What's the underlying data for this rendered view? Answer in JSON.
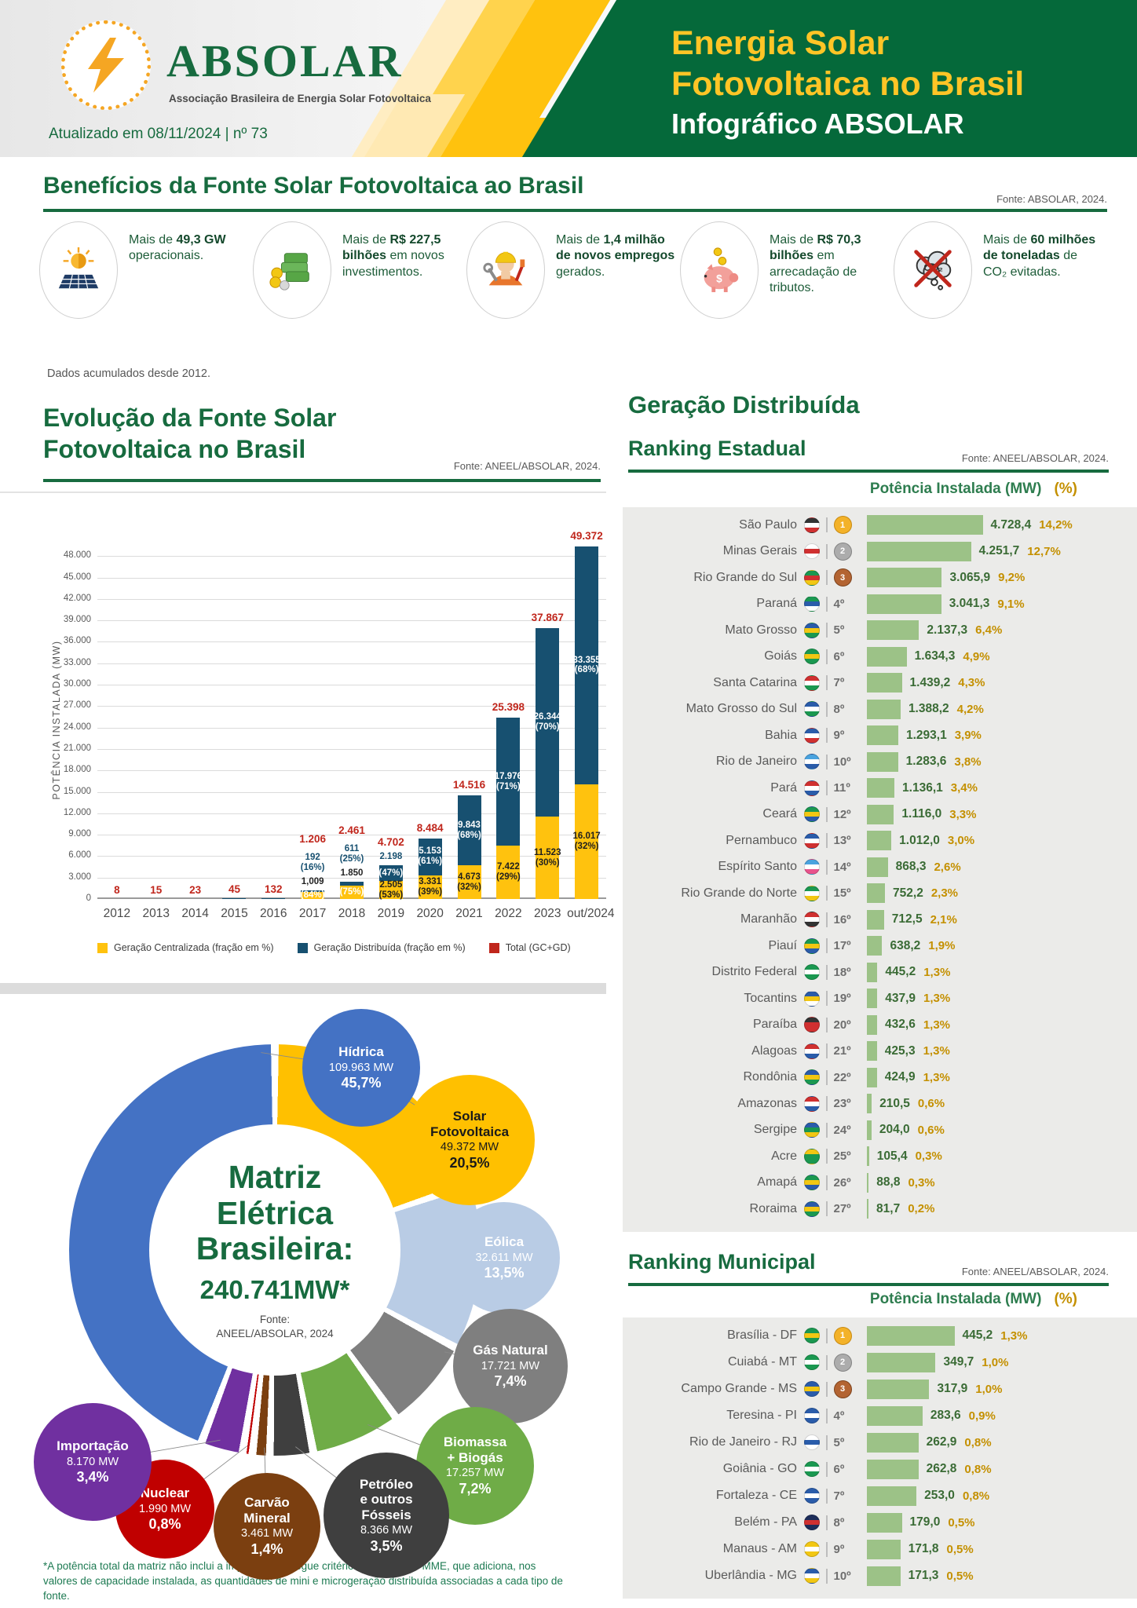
{
  "header": {
    "brand": "ABSOLAR",
    "tagline": "Associação Brasileira de Energia Solar Fotovoltaica",
    "title_line1": "Energia Solar",
    "title_line2": "Fotovoltaica no Brasil",
    "subtitle": "Infográfico ABSOLAR",
    "updated": "Atualizado em 08/11/2024 | nº 73"
  },
  "colors": {
    "dark_green": "#176B3F",
    "header_green": "#05693A",
    "accent_yellow": "#FFC20E",
    "bar_blue": "#175070",
    "bar_yellow": "#FFC20E",
    "total_red": "#C0261C",
    "rank_bar_green": "#9CC287",
    "value_green": "#3A6B35",
    "pct_gold": "#C49000",
    "panel_gray": "#EBEBE9"
  },
  "benefits": {
    "title": "Benefícios da Fonte Solar Fotovoltaica ao Brasil",
    "fonte": "Fonte: ABSOLAR, 2024.",
    "note": "Dados acumulados desde 2012.",
    "items": [
      {
        "icon": "solar-panel-icon",
        "pre": "Mais de",
        "bold": "49,3 GW",
        "post": "operacionais."
      },
      {
        "icon": "money-icon",
        "pre": "Mais de",
        "bold": "R$ 227,5 bilhões",
        "post": "em novos investimentos."
      },
      {
        "icon": "worker-icon",
        "pre": "Mais de",
        "bold": "1,4 milhão de novos empregos",
        "post": "gerados."
      },
      {
        "icon": "piggy-bank-icon",
        "pre": "Mais de",
        "bold": "R$ 70,3 bilhões",
        "post": "em arrecadação de tributos."
      },
      {
        "icon": "co2-icon",
        "pre": "Mais de",
        "bold": "60 milhões de toneladas",
        "post": "de CO₂ evitadas."
      }
    ]
  },
  "evolution": {
    "title_line1": "Evolução da Fonte Solar",
    "title_line2": "Fotovoltaica no Brasil",
    "fonte": "Fonte: ANEEL/ABSOLAR, 2024."
  },
  "gd": {
    "title": "Geração Distribuída",
    "estadual_heading": "Ranking Estadual",
    "estadual_fonte": "Fonte: ANEEL/ABSOLAR, 2024.",
    "municipal_heading": "Ranking Municipal",
    "municipal_fonte": "Fonte: ANEEL/ABSOLAR, 2024.",
    "col_mw": "Potência Instalada (MW)",
    "col_pct": "(%)"
  },
  "matrix": {
    "center_line1": "Matriz",
    "center_line2": "Elétrica",
    "center_line3": "Brasileira:",
    "center_total": "240.741MW*",
    "fonte": "Fonte:\nANEEL/ABSOLAR, 2024",
    "footnote": "*A potência total da matriz não inclui a importação e segue critério aplicado pelo MME, que adiciona, nos valores de capacidade instalada, as quantidades de mini e microgeração distribuída associadas a cada tipo de fonte."
  },
  "chart_data": [
    {
      "id": "evolution",
      "type": "bar",
      "stacked": true,
      "title": "Evolução da Fonte Solar Fotovoltaica no Brasil",
      "ylabel": "POTÊNCIA INSTALADA (MW)",
      "ylim": [
        0,
        48000
      ],
      "grid_step": 3000,
      "grid": true,
      "legend_position": "bottom",
      "categories": [
        "2012",
        "2013",
        "2014",
        "2015",
        "2016",
        "2017",
        "2018",
        "2019",
        "2020",
        "2021",
        "2022",
        "2023",
        "out/2024"
      ],
      "series": [
        {
          "name": "Geração Centralizada (fração em %)",
          "color": "#FFC20E",
          "values": [
            0,
            0,
            0,
            0,
            0,
            1009,
            1850,
            2505,
            3331,
            4673,
            7422,
            11523,
            16017
          ],
          "labels": [
            "",
            "",
            "",
            "",
            "",
            "1,009",
            "1.850",
            "2.505",
            "3.331",
            "4.673",
            "7.422",
            "11.523",
            "16.017"
          ],
          "pcts": [
            "",
            "",
            "",
            "",
            "",
            "(84%)",
            "(75%)",
            "(53%)",
            "(39%)",
            "(32%)",
            "(29%)",
            "(30%)",
            "(32%)"
          ]
        },
        {
          "name": "Geração Distribuída (fração em %)",
          "color": "#175070",
          "values": [
            8,
            15,
            23,
            45,
            132,
            192,
            611,
            2198,
            5153,
            9843,
            17976,
            26344,
            33355
          ],
          "labels": [
            "",
            "",
            "",
            "",
            "",
            "192",
            "611",
            "2.198",
            "5.153",
            "9.843",
            "17.976",
            "26.344",
            "33.355"
          ],
          "pcts": [
            "",
            "",
            "",
            "",
            "",
            "(16%)",
            "(25%)",
            "(47%)",
            "(61%)",
            "(68%)",
            "(71%)",
            "(70%)",
            "(68%)"
          ]
        }
      ],
      "totals": {
        "name": "Total (GC+GD)",
        "color": "#C0261C",
        "labels": [
          "8",
          "15",
          "23",
          "45",
          "132",
          "1.206",
          "2.461",
          "4.702",
          "8.484",
          "14.516",
          "25.398",
          "37.867",
          "49.372"
        ]
      },
      "label_modes": [
        "tiny",
        "tiny",
        "tiny",
        "tiny",
        "tiny",
        "above",
        "above",
        "mixed",
        "inside",
        "inside",
        "inside",
        "inside",
        "inside"
      ]
    },
    {
      "id": "matriz",
      "type": "pie",
      "title": "Matriz Elétrica Brasileira: 240.741MW*",
      "segments": [
        {
          "id": "solar",
          "name": "Solar\nFotovoltaica",
          "mw": "49.372 MW",
          "pct": "20,5%",
          "value": 20.5,
          "color": "#FFC000",
          "text": "#1a1a1a"
        },
        {
          "id": "eolica",
          "name": "Eólica",
          "mw": "32.611 MW",
          "pct": "13,5%",
          "value": 13.5,
          "color": "#B9CCE5",
          "text": "#ffffff"
        },
        {
          "id": "gas",
          "name": "Gás Natural",
          "mw": "17.721 MW",
          "pct": "7,4%",
          "value": 7.4,
          "color": "#7F7F7F",
          "text": "#ffffff"
        },
        {
          "id": "biomassa",
          "name": "Biomassa\n+ Biogás",
          "mw": "17.257 MW",
          "pct": "7,2%",
          "value": 7.2,
          "color": "#6FAC47",
          "text": "#ffffff"
        },
        {
          "id": "petroleo",
          "name": "Petróleo\ne outros\nFósseis",
          "mw": "8.366 MW",
          "pct": "3,5%",
          "value": 3.5,
          "color": "#3F3F3F",
          "text": "#ffffff"
        },
        {
          "id": "carvao",
          "name": "Carvão\nMineral",
          "mw": "3.461 MW",
          "pct": "1,4%",
          "value": 1.4,
          "color": "#7B3F10",
          "text": "#ffffff"
        },
        {
          "id": "nuclear",
          "name": "Nuclear",
          "mw": "1.990 MW",
          "pct": "0,8%",
          "value": 0.8,
          "color": "#C00000",
          "text": "#ffffff"
        },
        {
          "id": "importacao",
          "name": "Importação",
          "mw": "8.170 MW",
          "pct": "3,4%",
          "value": 3.4,
          "color": "#7030A0",
          "text": "#ffffff"
        },
        {
          "id": "hidrica",
          "name": "Hídrica",
          "mw": "109.963 MW",
          "pct": "45,7%",
          "value": 45.7,
          "color": "#4472C4",
          "text": "#ffffff"
        }
      ]
    },
    {
      "id": "estadual",
      "type": "bar",
      "orientation": "horizontal",
      "title": "Geração Distribuída — Ranking Estadual",
      "unit": "MW",
      "rows": [
        {
          "name": "São Paulo",
          "rank": "1º",
          "medal": "gold",
          "value": "4.728,4",
          "pct": "14,2%",
          "flag": [
            "#333333",
            "#ffffff",
            "#d03030"
          ]
        },
        {
          "name": "Minas Gerais",
          "rank": "2º",
          "medal": "silver",
          "value": "4.251,7",
          "pct": "12,7%",
          "flag": [
            "#ffffff",
            "#d03030",
            "#ffffff"
          ]
        },
        {
          "name": "Rio Grande do Sul",
          "rank": "3º",
          "medal": "bronze",
          "value": "3.065,9",
          "pct": "9,2%",
          "flag": [
            "#1a9850",
            "#d03030",
            "#f2c713"
          ]
        },
        {
          "name": "Paraná",
          "rank": "4º",
          "medal": null,
          "value": "3.041,3",
          "pct": "9,1%",
          "flag": [
            "#1a9850",
            "#2a5caa",
            "#ffffff"
          ]
        },
        {
          "name": "Mato Grosso",
          "rank": "5º",
          "medal": null,
          "value": "2.137,3",
          "pct": "6,4%",
          "flag": [
            "#2a5caa",
            "#f2c713",
            "#1a9850"
          ]
        },
        {
          "name": "Goiás",
          "rank": "6º",
          "medal": null,
          "value": "1.634,3",
          "pct": "4,9%",
          "flag": [
            "#1a9850",
            "#f2c713",
            "#1a9850"
          ]
        },
        {
          "name": "Santa Catarina",
          "rank": "7º",
          "medal": null,
          "value": "1.439,2",
          "pct": "4,3%",
          "flag": [
            "#d03030",
            "#ffffff",
            "#1a9850"
          ]
        },
        {
          "name": "Mato Grosso do Sul",
          "rank": "8º",
          "medal": null,
          "value": "1.388,2",
          "pct": "4,2%",
          "flag": [
            "#2a5caa",
            "#ffffff",
            "#1a9850"
          ]
        },
        {
          "name": "Bahia",
          "rank": "9º",
          "medal": null,
          "value": "1.293,1",
          "pct": "3,9%",
          "flag": [
            "#2a5caa",
            "#ffffff",
            "#d03030"
          ]
        },
        {
          "name": "Rio de Janeiro",
          "rank": "10º",
          "medal": null,
          "value": "1.283,6",
          "pct": "3,8%",
          "flag": [
            "#4aa3df",
            "#ffffff",
            "#2a5caa"
          ]
        },
        {
          "name": "Pará",
          "rank": "11º",
          "medal": null,
          "value": "1.136,1",
          "pct": "3,4%",
          "flag": [
            "#d03030",
            "#ffffff",
            "#2a5caa"
          ]
        },
        {
          "name": "Ceará",
          "rank": "12º",
          "medal": null,
          "value": "1.116,0",
          "pct": "3,3%",
          "flag": [
            "#1a9850",
            "#f2c713",
            "#2a5caa"
          ]
        },
        {
          "name": "Pernambuco",
          "rank": "13º",
          "medal": null,
          "value": "1.012,0",
          "pct": "3,0%",
          "flag": [
            "#2a5caa",
            "#ffffff",
            "#d03030"
          ]
        },
        {
          "name": "Espírito Santo",
          "rank": "14º",
          "medal": null,
          "value": "868,3",
          "pct": "2,6%",
          "flag": [
            "#4aa3df",
            "#ffffff",
            "#e9538c"
          ]
        },
        {
          "name": "Rio Grande do Norte",
          "rank": "15º",
          "medal": null,
          "value": "752,2",
          "pct": "2,3%",
          "flag": [
            "#1a9850",
            "#ffffff",
            "#f2c713"
          ]
        },
        {
          "name": "Maranhão",
          "rank": "16º",
          "medal": null,
          "value": "712,5",
          "pct": "2,1%",
          "flag": [
            "#d03030",
            "#ffffff",
            "#333333"
          ]
        },
        {
          "name": "Piauí",
          "rank": "17º",
          "medal": null,
          "value": "638,2",
          "pct": "1,9%",
          "flag": [
            "#1a9850",
            "#f2c713",
            "#2a5caa"
          ]
        },
        {
          "name": "Distrito Federal",
          "rank": "18º",
          "medal": null,
          "value": "445,2",
          "pct": "1,3%",
          "flag": [
            "#1a9850",
            "#ffffff",
            "#1a9850"
          ]
        },
        {
          "name": "Tocantins",
          "rank": "19º",
          "medal": null,
          "value": "437,9",
          "pct": "1,3%",
          "flag": [
            "#2a5caa",
            "#f2c713",
            "#ffffff"
          ]
        },
        {
          "name": "Paraíba",
          "rank": "20º",
          "medal": null,
          "value": "432,6",
          "pct": "1,3%",
          "flag": [
            "#333333",
            "#d03030",
            "#d03030"
          ]
        },
        {
          "name": "Alagoas",
          "rank": "21º",
          "medal": null,
          "value": "425,3",
          "pct": "1,3%",
          "flag": [
            "#d03030",
            "#ffffff",
            "#2a5caa"
          ]
        },
        {
          "name": "Rondônia",
          "rank": "22º",
          "medal": null,
          "value": "424,9",
          "pct": "1,3%",
          "flag": [
            "#2a5caa",
            "#f2c713",
            "#1a9850"
          ]
        },
        {
          "name": "Amazonas",
          "rank": "23º",
          "medal": null,
          "value": "210,5",
          "pct": "0,6%",
          "flag": [
            "#d03030",
            "#ffffff",
            "#2a5caa"
          ]
        },
        {
          "name": "Sergipe",
          "rank": "24º",
          "medal": null,
          "value": "204,0",
          "pct": "0,6%",
          "flag": [
            "#2a5caa",
            "#1a9850",
            "#f2c713"
          ]
        },
        {
          "name": "Acre",
          "rank": "25º",
          "medal": null,
          "value": "105,4",
          "pct": "0,3%",
          "flag": [
            "#f2c713",
            "#1a9850",
            "#1a9850"
          ]
        },
        {
          "name": "Amapá",
          "rank": "26º",
          "medal": null,
          "value": "88,8",
          "pct": "0,3%",
          "flag": [
            "#1a9850",
            "#f2c713",
            "#2a5caa"
          ]
        },
        {
          "name": "Roraima",
          "rank": "27º",
          "medal": null,
          "value": "81,7",
          "pct": "0,2%",
          "flag": [
            "#2a5caa",
            "#f2c713",
            "#1a9850"
          ]
        }
      ]
    },
    {
      "id": "municipal",
      "type": "bar",
      "orientation": "horizontal",
      "title": "Geração Distribuída — Ranking Municipal",
      "unit": "MW",
      "rows": [
        {
          "name": "Brasília - DF",
          "rank": "1º",
          "medal": "gold",
          "value": "445,2",
          "pct": "1,3%",
          "flag": [
            "#1a9850",
            "#f2c713",
            "#1a9850"
          ]
        },
        {
          "name": "Cuiabá - MT",
          "rank": "2º",
          "medal": "silver",
          "value": "349,7",
          "pct": "1,0%",
          "flag": [
            "#1a9850",
            "#ffffff",
            "#1a9850"
          ]
        },
        {
          "name": "Campo Grande - MS",
          "rank": "3º",
          "medal": "bronze",
          "value": "317,9",
          "pct": "1,0%",
          "flag": [
            "#2a5caa",
            "#f2c713",
            "#2a5caa"
          ]
        },
        {
          "name": "Teresina - PI",
          "rank": "4º",
          "medal": null,
          "value": "283,6",
          "pct": "0,9%",
          "flag": [
            "#2a5caa",
            "#ffffff",
            "#2a5caa"
          ]
        },
        {
          "name": "Rio de Janeiro - RJ",
          "rank": "5º",
          "medal": null,
          "value": "262,9",
          "pct": "0,8%",
          "flag": [
            "#ffffff",
            "#2a5caa",
            "#ffffff"
          ]
        },
        {
          "name": "Goiânia - GO",
          "rank": "6º",
          "medal": null,
          "value": "262,8",
          "pct": "0,8%",
          "flag": [
            "#1a9850",
            "#ffffff",
            "#1a9850"
          ]
        },
        {
          "name": "Fortaleza - CE",
          "rank": "7º",
          "medal": null,
          "value": "253,0",
          "pct": "0,8%",
          "flag": [
            "#2a5caa",
            "#ffffff",
            "#2a5caa"
          ]
        },
        {
          "name": "Belém - PA",
          "rank": "8º",
          "medal": null,
          "value": "179,0",
          "pct": "0,5%",
          "flag": [
            "#1d2d5a",
            "#d03030",
            "#1d2d5a"
          ]
        },
        {
          "name": "Manaus - AM",
          "rank": "9º",
          "medal": null,
          "value": "171,8",
          "pct": "0,5%",
          "flag": [
            "#f2c713",
            "#ffffff",
            "#f2c713"
          ]
        },
        {
          "name": "Uberlândia - MG",
          "rank": "10º",
          "medal": null,
          "value": "171,3",
          "pct": "0,5%",
          "flag": [
            "#2a5caa",
            "#ffffff",
            "#f2c713"
          ]
        }
      ]
    }
  ]
}
